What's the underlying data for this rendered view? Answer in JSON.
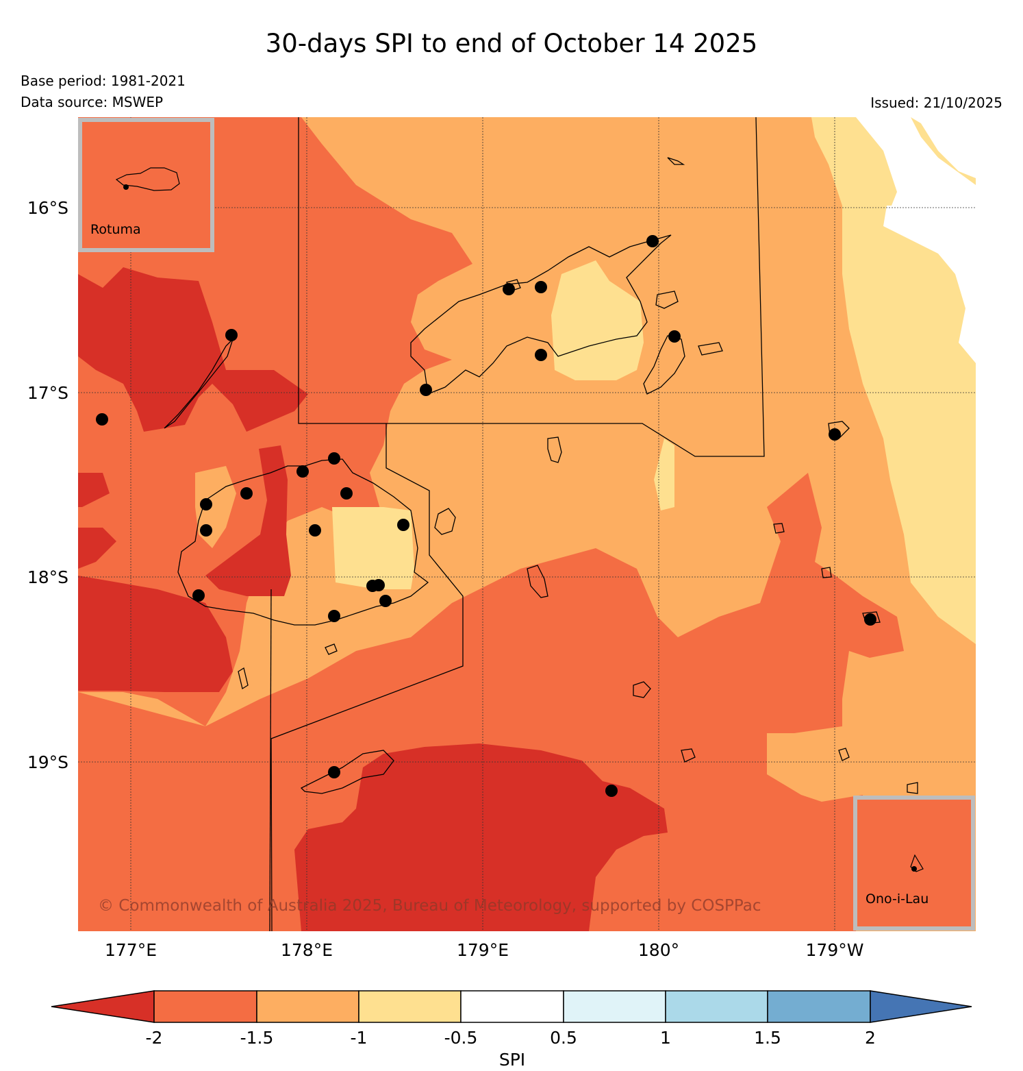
{
  "title": "30-days SPI to end of October 14 2025",
  "base_period": "Base period: 1981-2021",
  "data_source": "Data source: MSWEP",
  "issued": "Issued: 21/10/2025",
  "copyright": "© Commonwealth of Australia 2025, Bureau of Meteorology, supported by COSPPac",
  "lat_labels": [
    "16°S",
    "17°S",
    "18°S",
    "19°S"
  ],
  "lon_labels": [
    "177°E",
    "178°E",
    "179°E",
    "180°",
    "179°W"
  ],
  "insets": {
    "rotuma": "Rotuma",
    "ono_i_lau": "Ono-i-Lau"
  },
  "colorbar": {
    "label": "SPI",
    "ticks": [
      "-2",
      "-1.5",
      "-1",
      "-0.5",
      "0.5",
      "1",
      "1.5",
      "2"
    ],
    "colors": [
      "#d73027",
      "#f46d43",
      "#fdae61",
      "#fee090",
      "#ffffff",
      "#e0f3f8",
      "#abd9e9",
      "#74add1",
      "#4575b4"
    ]
  },
  "stations_count": 28
}
